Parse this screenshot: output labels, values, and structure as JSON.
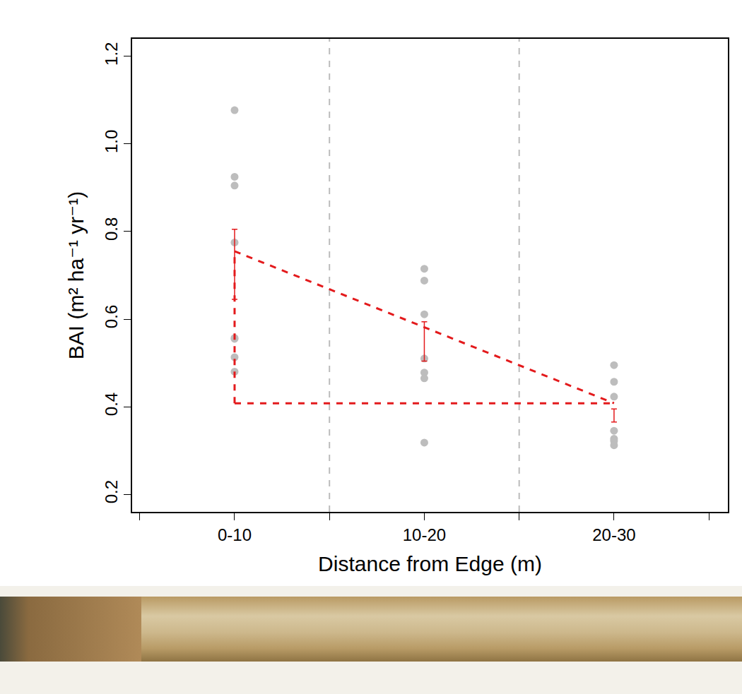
{
  "chart_data": {
    "type": "scatter",
    "x_label": "Distance from Edge (m)",
    "y_label": "BAI (m² ha⁻¹ yr⁻¹)",
    "categories": [
      "0-10",
      "10-20",
      "20-30"
    ],
    "points": [
      [
        1.077,
        0.925,
        0.905,
        0.775,
        0.557,
        0.555,
        0.513,
        0.48
      ],
      [
        0.715,
        0.688,
        0.611,
        0.51,
        0.478,
        0.465,
        0.318
      ],
      [
        0.495,
        0.457,
        0.423,
        0.345,
        0.327,
        0.322,
        0.312
      ]
    ],
    "color": "#bdbdbd",
    "means": [
      0.725,
      0.549,
      0.38
    ],
    "errors": [
      0.08,
      0.045,
      0.015
    ],
    "mean_color": "#e31a1c",
    "mean_marker": "open circle",
    "lines": [
      {
        "categories": [
          "0-10",
          "20-30"
        ],
        "values": [
          0.755,
          0.408
        ]
      },
      {
        "categories": [
          "0-10",
          "20-30"
        ],
        "values": [
          0.408,
          0.408
        ]
      },
      {
        "categories": [
          "0-10",
          "0-10"
        ],
        "values": [
          0.408,
          0.755
        ]
      }
    ],
    "line_color": "#e31a1c",
    "line_style": "dashed",
    "xlim": [
      -0.54,
      2.6
    ],
    "ylim": [
      0.16,
      1.24
    ],
    "yticks": [
      0.2,
      0.4,
      0.6,
      0.8,
      {
        "value": 1,
        "label": "1.0"
      },
      1.2
    ],
    "grid": false
  }
}
